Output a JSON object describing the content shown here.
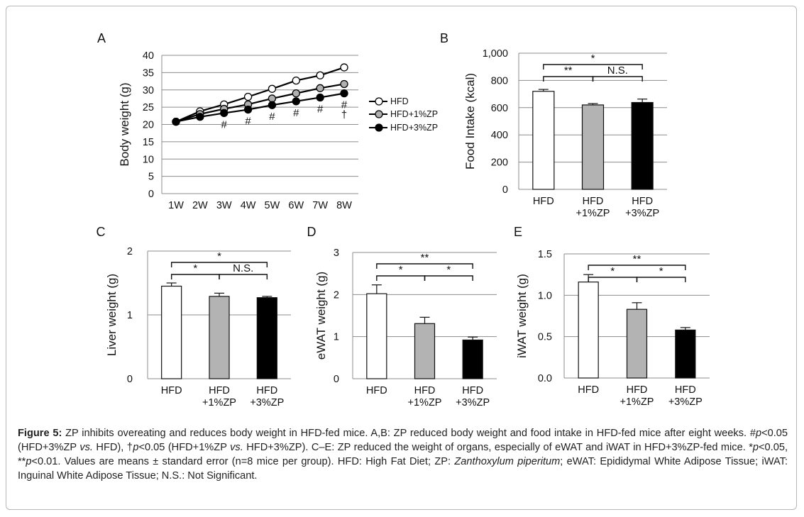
{
  "chart_data": [
    {
      "id": "A",
      "panel_label": "A",
      "type": "line",
      "ylabel": "Body weight (g)",
      "ylim": [
        0,
        40
      ],
      "yticks": [
        "0",
        "5",
        "10",
        "15",
        "20",
        "25",
        "30",
        "35",
        "40"
      ],
      "categories": [
        "1W",
        "2W",
        "3W",
        "4W",
        "5W",
        "6W",
        "7W",
        "8W"
      ],
      "grid": true,
      "legend_placement": "right",
      "series": [
        {
          "name": "HFD",
          "color": "#ffffff",
          "values": [
            20.8,
            23.8,
            25.8,
            28.0,
            30.3,
            32.7,
            34.2,
            36.5
          ]
        },
        {
          "name": "HFD+1%ZP",
          "color": "#b0b0b0",
          "values": [
            20.8,
            23.0,
            24.5,
            25.8,
            27.5,
            29.0,
            30.5,
            31.7
          ]
        },
        {
          "name": "HFD+3%ZP",
          "color": "#000000",
          "values": [
            20.8,
            22.2,
            23.3,
            24.3,
            25.6,
            26.7,
            27.8,
            29.0
          ]
        }
      ],
      "annotations": [
        {
          "category": "3W",
          "text": "#"
        },
        {
          "category": "4W",
          "text": "#"
        },
        {
          "category": "5W",
          "text": "#"
        },
        {
          "category": "6W",
          "text": "#"
        },
        {
          "category": "7W",
          "text": "#"
        },
        {
          "category": "8W",
          "text": "#"
        },
        {
          "category": "8W",
          "text": "†"
        }
      ]
    },
    {
      "id": "B",
      "panel_label": "B",
      "type": "bar",
      "ylabel": "Food Intake (kcal)",
      "ylim": [
        0,
        1000
      ],
      "yticks": [
        "0",
        "200",
        "400",
        "600",
        "800",
        "1,000"
      ],
      "categories": [
        [
          "HFD"
        ],
        [
          "HFD",
          "+1%ZP"
        ],
        [
          "HFD",
          "+3%ZP"
        ]
      ],
      "values": [
        720,
        620,
        638
      ],
      "errors": [
        14,
        10,
        25
      ],
      "colors": [
        "#ffffff",
        "#b3b3b3",
        "#000000"
      ],
      "grid": true,
      "brackets": [
        {
          "from": 0,
          "to": 2,
          "label": "*",
          "level": 2
        },
        {
          "from": 0,
          "to": 1,
          "label": "**",
          "level": 1
        },
        {
          "from": 1,
          "to": 2,
          "label": "N.S.",
          "level": 1
        }
      ]
    },
    {
      "id": "C",
      "panel_label": "C",
      "type": "bar",
      "ylabel": "Liver weight (g)",
      "ylim": [
        0,
        2
      ],
      "yticks": [
        "0",
        "1",
        "2"
      ],
      "categories": [
        [
          "HFD"
        ],
        [
          "HFD",
          "+1%ZP"
        ],
        [
          "HFD",
          "+3%ZP"
        ]
      ],
      "values": [
        1.45,
        1.29,
        1.27
      ],
      "errors": [
        0.05,
        0.05,
        0.02
      ],
      "colors": [
        "#ffffff",
        "#b3b3b3",
        "#000000"
      ],
      "grid": true,
      "brackets": [
        {
          "from": 0,
          "to": 2,
          "label": "*",
          "level": 2
        },
        {
          "from": 0,
          "to": 1,
          "label": "*",
          "level": 1
        },
        {
          "from": 1,
          "to": 2,
          "label": "N.S.",
          "level": 1
        }
      ]
    },
    {
      "id": "D",
      "panel_label": "D",
      "type": "bar",
      "ylabel": "eWAT weight (g)",
      "ylim": [
        0,
        3
      ],
      "yticks": [
        "0",
        "1",
        "2",
        "3"
      ],
      "categories": [
        [
          "HFD"
        ],
        [
          "HFD",
          "+1%ZP"
        ],
        [
          "HFD",
          "+3%ZP"
        ]
      ],
      "values": [
        2.02,
        1.31,
        0.92
      ],
      "errors": [
        0.21,
        0.15,
        0.07
      ],
      "colors": [
        "#ffffff",
        "#b3b3b3",
        "#000000"
      ],
      "grid": true,
      "brackets": [
        {
          "from": 0,
          "to": 2,
          "label": "**",
          "level": 2
        },
        {
          "from": 0,
          "to": 1,
          "label": "*",
          "level": 1
        },
        {
          "from": 1,
          "to": 2,
          "label": "*",
          "level": 1
        }
      ]
    },
    {
      "id": "E",
      "panel_label": "E",
      "type": "bar",
      "ylabel": "iWAT weight (g)",
      "ylim": [
        0,
        1.5
      ],
      "yticks": [
        "0.0",
        "0.5",
        "1.0",
        "1.5"
      ],
      "categories": [
        [
          "HFD"
        ],
        [
          "HFD",
          "+1%ZP"
        ],
        [
          "HFD",
          "+3%ZP"
        ]
      ],
      "values": [
        1.16,
        0.83,
        0.58
      ],
      "errors": [
        0.09,
        0.08,
        0.03
      ],
      "colors": [
        "#ffffff",
        "#b3b3b3",
        "#000000"
      ],
      "grid": true,
      "brackets": [
        {
          "from": 0,
          "to": 2,
          "label": "**",
          "level": 2
        },
        {
          "from": 0,
          "to": 1,
          "label": "*",
          "level": 1
        },
        {
          "from": 1,
          "to": 2,
          "label": "*",
          "level": 1
        }
      ]
    }
  ],
  "caption": {
    "label": "Figure 5:",
    "line1": " ZP inhibits overeating and reduces body weight in HFD-fed mice. A,B: ZP reduced body weight and food intake in HFD-fed mice after eight weeks. #",
    "p1": "p",
    "line2": "<0.05 (HFD+3%ZP ",
    "vs1": "vs.",
    "line3": " HFD), †",
    "p2": "p",
    "line4": "<0.05 (HFD+1%ZP ",
    "vs2": "vs.",
    "line5": " HFD+3%ZP). C–E: ZP reduced the weight of organs, especially of eWAT and iWAT in HFD+3%ZP-fed mice. *",
    "p3": "p",
    "line6": "<0.05, **",
    "p4": "p",
    "line7": "<0.01. Values are means ± standard error (n=8 mice per group). HFD: High Fat Diet; ZP: ",
    "species": "Zanthoxylum piperitum",
    "line8": "; eWAT: Epididymal White Adipose Tissue; iWAT: Inguinal White Adipose Tissue; N.S.: Not Significant."
  }
}
